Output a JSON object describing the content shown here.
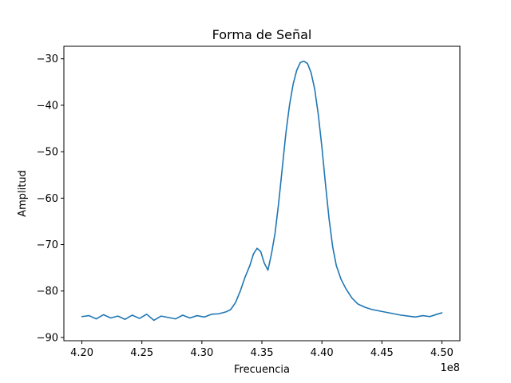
{
  "chart_data": {
    "type": "line",
    "title": "Forma de Señal",
    "xlabel": "Frecuencia",
    "ylabel": "Amplitud",
    "x_offset_label": "1e8",
    "x_scale": 100000000,
    "xlim": [
      418500000,
      451500000
    ],
    "ylim": [
      -90.7,
      -27.3
    ],
    "x_ticks": [
      4.2,
      4.25,
      4.3,
      4.35,
      4.4,
      4.45,
      4.5
    ],
    "x_tick_labels": [
      "4.20",
      "4.25",
      "4.30",
      "4.35",
      "4.40",
      "4.45",
      "4.50"
    ],
    "y_ticks": [
      -90,
      -80,
      -70,
      -60,
      -50,
      -40,
      -30
    ],
    "y_tick_labels": [
      "−90",
      "−80",
      "−70",
      "−60",
      "−50",
      "−40",
      "−30"
    ],
    "grid": false,
    "series": [
      {
        "color": "#1f77b4",
        "x": [
          420000000,
          420600000,
          421200000,
          421800000,
          422400000,
          423000000,
          423600000,
          424200000,
          424800000,
          425400000,
          426000000,
          426600000,
          427200000,
          427800000,
          428400000,
          429000000,
          429600000,
          430200000,
          430800000,
          431400000,
          432000000,
          432400000,
          432800000,
          433200000,
          433600000,
          434000000,
          434300000,
          434600000,
          434900000,
          435200000,
          435500000,
          435800000,
          436100000,
          436400000,
          436700000,
          437000000,
          437300000,
          437600000,
          437900000,
          438200000,
          438500000,
          438800000,
          439100000,
          439400000,
          439700000,
          440000000,
          440300000,
          440600000,
          440900000,
          441200000,
          441600000,
          442000000,
          442500000,
          443000000,
          443600000,
          444200000,
          444800000,
          445400000,
          446000000,
          446600000,
          447200000,
          447800000,
          448400000,
          449000000,
          449600000,
          450000000
        ],
        "values": [
          -85.5,
          -85.3,
          -86.0,
          -85.1,
          -85.8,
          -85.4,
          -86.1,
          -85.2,
          -85.9,
          -85.0,
          -86.3,
          -85.4,
          -85.7,
          -86.0,
          -85.2,
          -85.8,
          -85.3,
          -85.6,
          -85.0,
          -84.9,
          -84.5,
          -84.0,
          -82.5,
          -80.0,
          -77.0,
          -74.5,
          -72.0,
          -70.8,
          -71.5,
          -74.0,
          -75.5,
          -72.0,
          -67.5,
          -61.0,
          -53.5,
          -46.0,
          -40.0,
          -35.5,
          -32.5,
          -30.8,
          -30.5,
          -31.0,
          -33.0,
          -36.5,
          -42.0,
          -49.0,
          -57.0,
          -64.5,
          -70.5,
          -74.5,
          -77.5,
          -79.5,
          -81.5,
          -82.8,
          -83.5,
          -84.0,
          -84.3,
          -84.6,
          -84.9,
          -85.2,
          -85.4,
          -85.6,
          -85.3,
          -85.5,
          -85.0,
          -84.7
        ]
      }
    ]
  }
}
